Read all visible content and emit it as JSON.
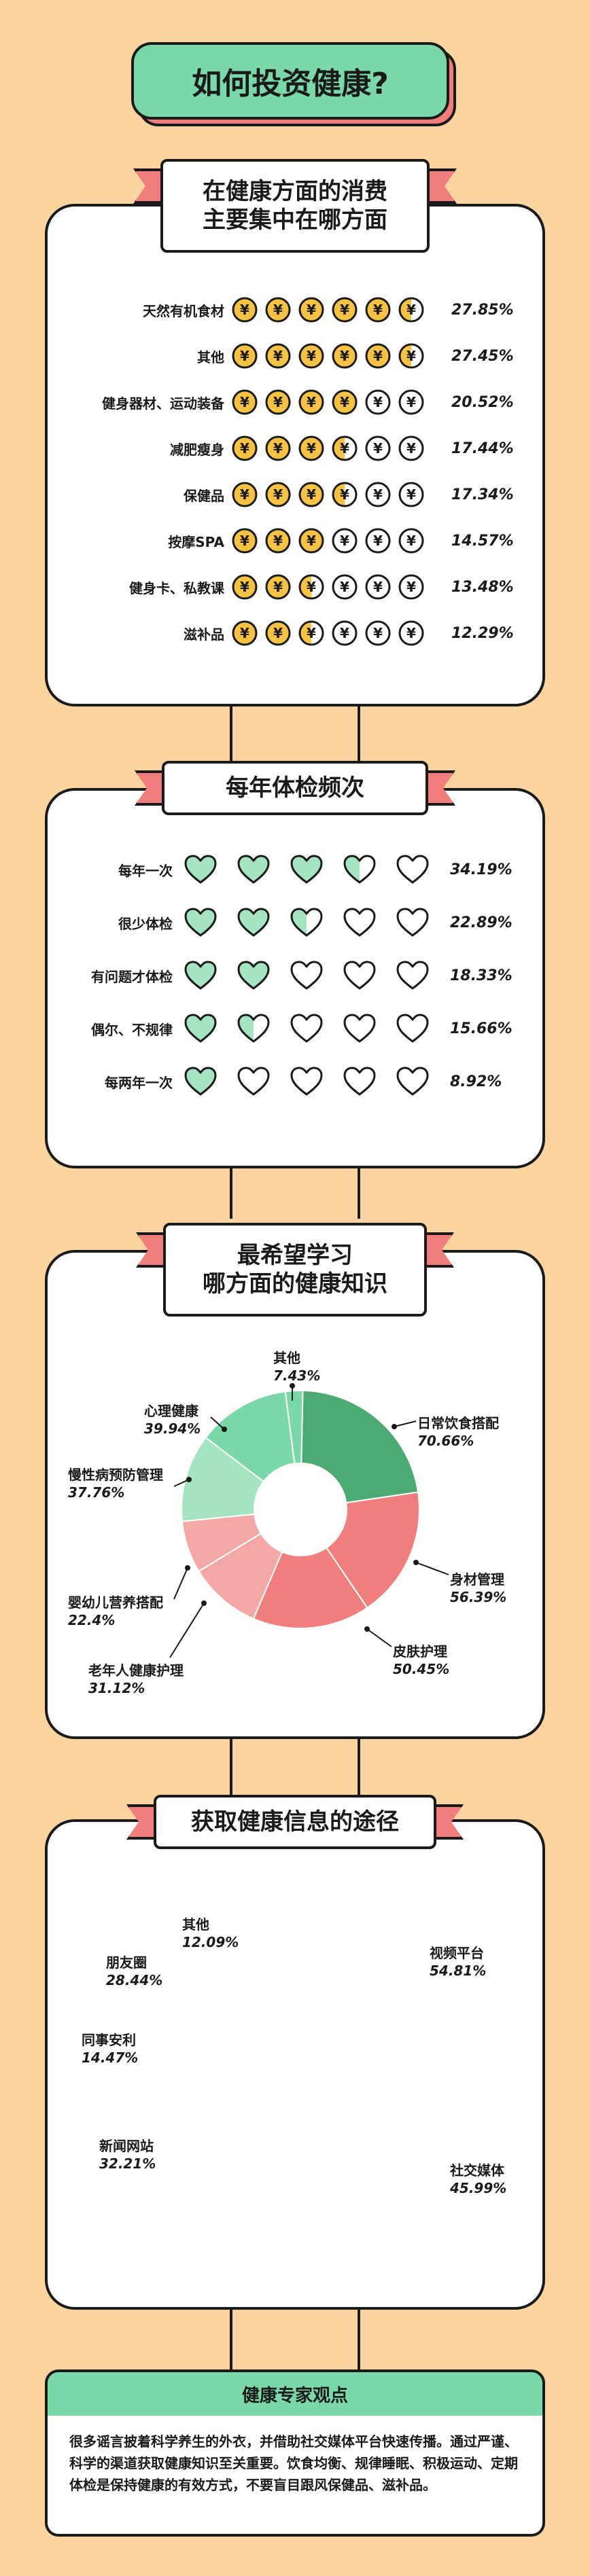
{
  "title": "如何投资健康?",
  "spending": {
    "header": [
      "在健康方面的消费",
      "主要集中在哪方面"
    ],
    "items": [
      {
        "label": "天然有机食材",
        "value": 27.85,
        "pct": "27.85%",
        "filled": 5,
        "partial": 1
      },
      {
        "label": "其他",
        "value": 27.45,
        "pct": "27.45%",
        "filled": 5,
        "partial": 1
      },
      {
        "label": "健身器材、运动装备",
        "value": 20.52,
        "pct": "20.52%",
        "filled": 4,
        "partial": 0
      },
      {
        "label": "减肥瘦身",
        "value": 17.44,
        "pct": "17.44%",
        "filled": 3,
        "partial": 1
      },
      {
        "label": "保健品",
        "value": 17.34,
        "pct": "17.34%",
        "filled": 3,
        "partial": 1
      },
      {
        "label": "按摩SPA",
        "value": 14.57,
        "pct": "14.57%",
        "filled": 3,
        "partial": 0
      },
      {
        "label": "健身卡、私教课",
        "value": 13.48,
        "pct": "13.48%",
        "filled": 2,
        "partial": 1
      },
      {
        "label": "滋补品",
        "value": 12.29,
        "pct": "12.29%",
        "filled": 2,
        "partial": 1
      }
    ]
  },
  "checkup": {
    "header": "每年体检频次",
    "items": [
      {
        "label": "每年一次",
        "value": 34.19,
        "pct": "34.19%",
        "filled": 3,
        "partial": 1
      },
      {
        "label": "很少体检",
        "value": 22.89,
        "pct": "22.89%",
        "filled": 2,
        "partial": 1
      },
      {
        "label": "有问题才体检",
        "value": 18.33,
        "pct": "18.33%",
        "filled": 2,
        "partial": 0
      },
      {
        "label": "偶尔、不规律",
        "value": 15.66,
        "pct": "15.66%",
        "filled": 1,
        "partial": 1
      },
      {
        "label": "每两年一次",
        "value": 8.92,
        "pct": "8.92%",
        "filled": 1,
        "partial": 0
      }
    ]
  },
  "knowledge": {
    "header": [
      "最希望学习",
      "哪方面的健康知识"
    ],
    "labels": [
      {
        "name": "其他",
        "pct": "7.43%"
      },
      {
        "name": "日常饮食搭配",
        "pct": "70.66%"
      },
      {
        "name": "身材管理",
        "pct": "56.39%"
      },
      {
        "name": "皮肤护理",
        "pct": "50.45%"
      },
      {
        "name": "老年人健康护理",
        "pct": "31.12%"
      },
      {
        "name": "婴幼儿营养搭配",
        "pct": "22.4%"
      },
      {
        "name": "慢性病预防管理",
        "pct": "37.76%"
      },
      {
        "name": "心理健康",
        "pct": "39.94%"
      }
    ]
  },
  "channels": {
    "header": "获取健康信息的途径",
    "labels": [
      {
        "name": "其他",
        "pct": "12.09%"
      },
      {
        "name": "视频平台",
        "pct": "54.81%"
      },
      {
        "name": "社交媒体",
        "pct": "45.99%"
      },
      {
        "name": "新闻网站",
        "pct": "32.21%"
      },
      {
        "name": "同事安利",
        "pct": "14.47%"
      },
      {
        "name": "朋友圈",
        "pct": "28.44%"
      }
    ]
  },
  "expert": {
    "title": "健康专家观点",
    "text": "很多谣言披着科学养生的外衣，并借助社交媒体平台快速传播。通过严谨、科学的渠道获取健康知识至关重要。饮食均衡、规律睡眠、积极运动、定期体检是保持健康的有效方式，不要盲目跟风保健品、滋补品。"
  },
  "colors": {
    "background": "#fbd4a0",
    "green": "#7bd8a8",
    "coral": "#f07e7c",
    "gold": "#f6c244",
    "dark_green": "#4caa72",
    "light_green": "#a5e4c0",
    "pink": "#f4a8a6"
  },
  "chart_data": [
    {
      "type": "bar",
      "title": "在健康方面的消费主要集中在哪方面",
      "categories": [
        "天然有机食材",
        "其他",
        "健身器材、运动装备",
        "减肥瘦身",
        "保健品",
        "按摩SPA",
        "健身卡、私教课",
        "滋补品"
      ],
      "values": [
        27.85,
        27.45,
        20.52,
        17.44,
        17.34,
        14.57,
        13.48,
        12.29
      ]
    },
    {
      "type": "bar",
      "title": "每年体检频次",
      "categories": [
        "每年一次",
        "很少体检",
        "有问题才体检",
        "偶尔、不规律",
        "每两年一次"
      ],
      "values": [
        34.19,
        22.89,
        18.33,
        15.66,
        8.92
      ]
    },
    {
      "type": "pie",
      "title": "最希望学习哪方面的健康知识",
      "categories": [
        "日常饮食搭配",
        "身材管理",
        "皮肤护理",
        "老年人健康护理",
        "婴幼儿营养搭配",
        "慢性病预防管理",
        "心理健康",
        "其他"
      ],
      "values": [
        70.66,
        56.39,
        50.45,
        31.12,
        22.4,
        37.76,
        39.94,
        7.43
      ],
      "colors": [
        "#4caa72",
        "#f07e7c",
        "#f07e7c",
        "#f4a8a6",
        "#f4a8a6",
        "#a5e4c0",
        "#7bd8a8",
        "#7bd8a8"
      ]
    },
    {
      "type": "pie",
      "title": "获取健康信息的途径",
      "categories": [
        "视频平台",
        "社交媒体",
        "新闻网站",
        "同事安利",
        "朋友圈",
        "其他"
      ],
      "values": [
        54.81,
        45.99,
        32.21,
        14.47,
        28.44,
        12.09
      ],
      "colors": [
        "#f07e7c",
        "#4caa72",
        "#7bd8a8",
        "#f4a8a6",
        "#f4a8a6",
        "#f4a8a6"
      ]
    }
  ]
}
